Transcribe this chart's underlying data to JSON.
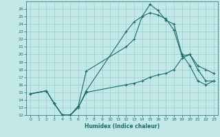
{
  "xlabel": "Humidex (Indice chaleur)",
  "xlim": [
    -0.5,
    23.5
  ],
  "ylim": [
    12,
    27
  ],
  "yticks": [
    12,
    13,
    14,
    15,
    16,
    17,
    18,
    19,
    20,
    21,
    22,
    23,
    24,
    25,
    26
  ],
  "xticks": [
    0,
    1,
    2,
    3,
    4,
    5,
    6,
    7,
    8,
    9,
    10,
    11,
    12,
    13,
    14,
    15,
    16,
    17,
    18,
    19,
    20,
    21,
    22,
    23
  ],
  "bg_color": "#c2e8e8",
  "grid_color": "#9ecece",
  "line_color": "#1a6b6b",
  "lines": [
    {
      "x": [
        0,
        2,
        3,
        4,
        5,
        6,
        7,
        12,
        13,
        14,
        15,
        16,
        17,
        18,
        19,
        20,
        21,
        22,
        23
      ],
      "y": [
        14.8,
        15.2,
        13.5,
        12.0,
        12.0,
        13.0,
        15.2,
        23.0,
        24.3,
        25.0,
        26.6,
        25.8,
        24.5,
        24.0,
        20.0,
        18.5,
        16.5,
        16.0,
        16.5
      ]
    },
    {
      "x": [
        0,
        2,
        3,
        4,
        5,
        6,
        7,
        12,
        13,
        14,
        15,
        16,
        17,
        18,
        19,
        20,
        21,
        22,
        23
      ],
      "y": [
        14.8,
        15.2,
        13.5,
        12.0,
        12.0,
        13.2,
        17.8,
        21.0,
        22.0,
        25.0,
        25.5,
        25.2,
        24.7,
        23.2,
        19.8,
        20.0,
        18.5,
        18.0,
        17.5
      ]
    },
    {
      "x": [
        0,
        2,
        3,
        4,
        5,
        6,
        7,
        12,
        13,
        14,
        15,
        16,
        17,
        18,
        19,
        20,
        21,
        22,
        23
      ],
      "y": [
        14.8,
        15.2,
        13.5,
        12.0,
        12.0,
        13.0,
        15.0,
        16.0,
        16.2,
        16.5,
        17.0,
        17.3,
        17.5,
        18.0,
        19.5,
        20.0,
        18.0,
        16.5,
        16.5
      ]
    }
  ]
}
